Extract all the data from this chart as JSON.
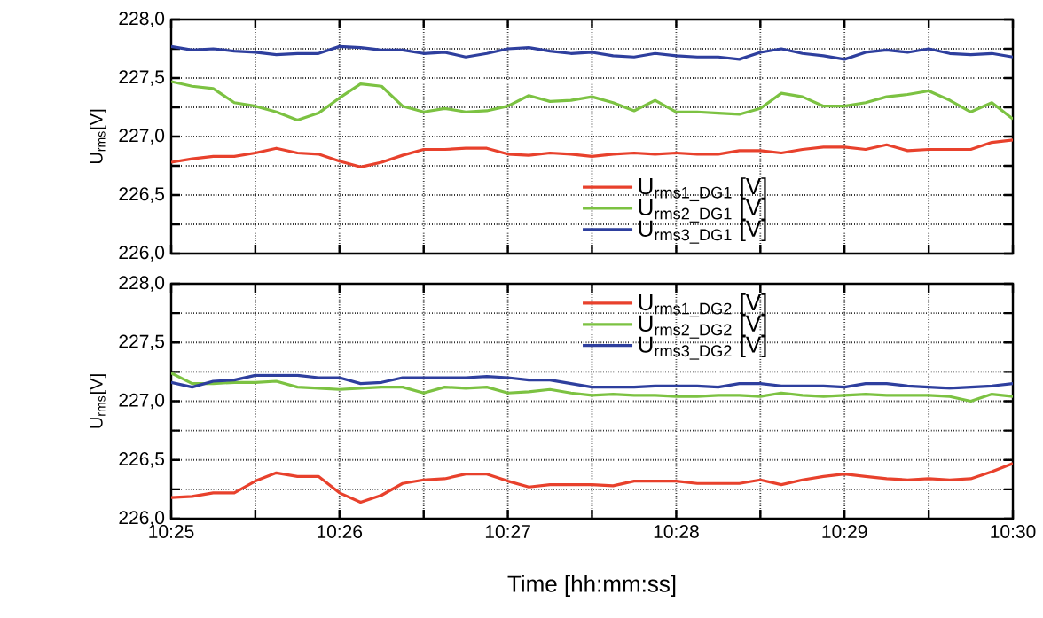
{
  "chart_data": [
    {
      "type": "line",
      "ylabel": "U$_{rms}$[V]",
      "marker": "none",
      "line_style": "solid",
      "grid": true,
      "legend": "bottom",
      "tick_labels": "y",
      "x": [
        10.41667,
        10.41875,
        10.42083,
        10.42292,
        10.425,
        10.42708,
        10.42917,
        10.43125,
        10.43333,
        10.43542,
        10.4375,
        10.43958,
        10.44167,
        10.44375,
        10.44583,
        10.44792,
        10.45,
        10.45208,
        10.45417,
        10.45625,
        10.45833,
        10.46042,
        10.4625,
        10.46458,
        10.46667,
        10.46875,
        10.47083,
        10.47292,
        10.475,
        10.47708,
        10.47917,
        10.48125,
        10.48333,
        10.48542,
        10.4875,
        10.48958,
        10.49167,
        10.49375,
        10.49583,
        10.49792,
        10.5
      ],
      "xlim": [
        10.41667,
        10.5
      ],
      "xticks": [
        {
          "value": 10.41667,
          "label": null
        },
        {
          "value": 10.425,
          "label": null
        },
        {
          "value": 10.43333,
          "label": null
        },
        {
          "value": 10.44167,
          "label": null
        },
        {
          "value": 10.45,
          "label": null
        },
        {
          "value": 10.45833,
          "label": null
        },
        {
          "value": 10.46667,
          "label": null
        },
        {
          "value": 10.475,
          "label": null
        },
        {
          "value": 10.48333,
          "label": null
        },
        {
          "value": 10.49167,
          "label": null
        },
        {
          "value": 10.5,
          "label": null
        }
      ],
      "ylim": [
        226,
        228
      ],
      "yticks": [
        {
          "value": 226,
          "label": "226,0"
        },
        {
          "value": 226.25,
          "label": null
        },
        {
          "value": 226.5,
          "label": "226,5"
        },
        {
          "value": 226.75,
          "label": null
        },
        {
          "value": 227,
          "label": "227,0"
        },
        {
          "value": 227.25,
          "label": null
        },
        {
          "value": 227.5,
          "label": "227,5"
        },
        {
          "value": 227.75,
          "label": null
        },
        {
          "value": 228,
          "label": "228,0"
        }
      ],
      "series": [
        {
          "name": "U$_{rms1_DG1}$ [V]",
          "color": "#e8412c",
          "values": [
            226.78,
            226.81,
            226.83,
            226.83,
            226.86,
            226.9,
            226.86,
            226.85,
            226.79,
            226.74,
            226.78,
            226.84,
            226.89,
            226.89,
            226.9,
            226.9,
            226.85,
            226.84,
            226.86,
            226.85,
            226.83,
            226.85,
            226.86,
            226.85,
            226.86,
            226.85,
            226.85,
            226.88,
            226.88,
            226.86,
            226.89,
            226.91,
            226.91,
            226.89,
            226.93,
            226.88,
            226.89,
            226.89,
            226.89,
            226.95,
            226.97
          ]
        },
        {
          "name": "U$_{rms2_DG1}$ [V]",
          "color": "#7cc242",
          "values": [
            227.47,
            227.43,
            227.41,
            227.29,
            227.26,
            227.21,
            227.14,
            227.2,
            227.33,
            227.45,
            227.43,
            227.26,
            227.21,
            227.24,
            227.21,
            227.22,
            227.26,
            227.35,
            227.3,
            227.31,
            227.34,
            227.29,
            227.22,
            227.31,
            227.21,
            227.21,
            227.2,
            227.19,
            227.24,
            227.37,
            227.34,
            227.26,
            227.26,
            227.29,
            227.34,
            227.36,
            227.39,
            227.31,
            227.21,
            227.29,
            227.15
          ]
        },
        {
          "name": "U$_{rms3_DG1}$ [V]",
          "color": "#2e3f9e",
          "values": [
            227.77,
            227.74,
            227.75,
            227.73,
            227.72,
            227.7,
            227.71,
            227.71,
            227.77,
            227.76,
            227.74,
            227.74,
            227.71,
            227.72,
            227.68,
            227.71,
            227.75,
            227.76,
            227.73,
            227.71,
            227.72,
            227.69,
            227.68,
            227.71,
            227.69,
            227.68,
            227.68,
            227.66,
            227.72,
            227.75,
            227.71,
            227.69,
            227.66,
            227.72,
            227.74,
            227.72,
            227.75,
            227.71,
            227.7,
            227.71,
            227.68
          ]
        }
      ]
    },
    {
      "type": "line",
      "ylabel": "U$_{rms}$[V]",
      "xlabel": "Time [hh:mm:ss]",
      "marker": "none",
      "line_style": "solid",
      "grid": true,
      "legend": "top",
      "x": [
        10.41667,
        10.41875,
        10.42083,
        10.42292,
        10.425,
        10.42708,
        10.42917,
        10.43125,
        10.43333,
        10.43542,
        10.4375,
        10.43958,
        10.44167,
        10.44375,
        10.44583,
        10.44792,
        10.45,
        10.45208,
        10.45417,
        10.45625,
        10.45833,
        10.46042,
        10.4625,
        10.46458,
        10.46667,
        10.46875,
        10.47083,
        10.47292,
        10.475,
        10.47708,
        10.47917,
        10.48125,
        10.48333,
        10.48542,
        10.4875,
        10.48958,
        10.49167,
        10.49375,
        10.49583,
        10.49792,
        10.5
      ],
      "xlim": [
        10.41667,
        10.5
      ],
      "xticks": [
        {
          "value": 10.41667,
          "label": "10:25"
        },
        {
          "value": 10.425,
          "label": null
        },
        {
          "value": 10.43333,
          "label": "10:26"
        },
        {
          "value": 10.44167,
          "label": null
        },
        {
          "value": 10.45,
          "label": "10:27"
        },
        {
          "value": 10.45833,
          "label": null
        },
        {
          "value": 10.46667,
          "label": "10:28"
        },
        {
          "value": 10.475,
          "label": null
        },
        {
          "value": 10.48333,
          "label": "10:29"
        },
        {
          "value": 10.49167,
          "label": null
        },
        {
          "value": 10.5,
          "label": "10:30"
        }
      ],
      "ylim": [
        226,
        228
      ],
      "yticks": [
        {
          "value": 226,
          "label": "226,0"
        },
        {
          "value": 226.25,
          "label": null
        },
        {
          "value": 226.5,
          "label": "226,5"
        },
        {
          "value": 226.75,
          "label": null
        },
        {
          "value": 227,
          "label": "227,0"
        },
        {
          "value": 227.25,
          "label": null
        },
        {
          "value": 227.5,
          "label": "227,5"
        },
        {
          "value": 227.75,
          "label": null
        },
        {
          "value": 228,
          "label": "228,0"
        }
      ],
      "series": [
        {
          "name": "U$_{rms1_DG2}$ [V]",
          "color": "#e8412c",
          "values": [
            226.18,
            226.19,
            226.22,
            226.22,
            226.32,
            226.39,
            226.36,
            226.36,
            226.22,
            226.14,
            226.2,
            226.3,
            226.33,
            226.34,
            226.38,
            226.38,
            226.32,
            226.27,
            226.29,
            226.29,
            226.29,
            226.28,
            226.32,
            226.32,
            226.32,
            226.3,
            226.3,
            226.3,
            226.33,
            226.29,
            226.33,
            226.36,
            226.38,
            226.36,
            226.34,
            226.33,
            226.34,
            226.33,
            226.34,
            226.4,
            226.47
          ]
        },
        {
          "name": "U$_{rms2_DG2}$ [V]",
          "color": "#7cc242",
          "values": [
            227.24,
            227.15,
            227.15,
            227.16,
            227.16,
            227.17,
            227.12,
            227.11,
            227.1,
            227.11,
            227.12,
            227.12,
            227.07,
            227.12,
            227.11,
            227.12,
            227.07,
            227.08,
            227.1,
            227.07,
            227.05,
            227.06,
            227.05,
            227.05,
            227.04,
            227.04,
            227.05,
            227.05,
            227.04,
            227.07,
            227.05,
            227.04,
            227.05,
            227.06,
            227.05,
            227.05,
            227.05,
            227.04,
            227.0,
            227.06,
            227.04
          ]
        },
        {
          "name": "U$_{rms3_DG2}$ [V]",
          "color": "#2e3f9e",
          "values": [
            227.16,
            227.12,
            227.17,
            227.18,
            227.22,
            227.22,
            227.22,
            227.2,
            227.2,
            227.15,
            227.16,
            227.2,
            227.2,
            227.2,
            227.2,
            227.21,
            227.2,
            227.18,
            227.18,
            227.15,
            227.12,
            227.12,
            227.12,
            227.13,
            227.13,
            227.13,
            227.12,
            227.15,
            227.15,
            227.13,
            227.13,
            227.13,
            227.12,
            227.15,
            227.15,
            227.13,
            227.12,
            227.11,
            227.12,
            227.13,
            227.15
          ]
        }
      ]
    }
  ]
}
